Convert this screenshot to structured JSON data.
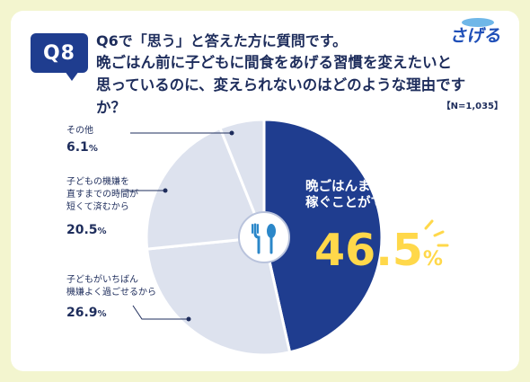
{
  "question": {
    "badge": "Q8",
    "line1": "Q6で「思う」と答えた方に質問です。",
    "line2": "晩ごはん前に子どもに間食をあげる習慣を変えたいと",
    "line3": "思っているのに、変えられないのはどのような理由ですか？",
    "sample": "【N=1,035】"
  },
  "logo_text": "さげる",
  "colors": {
    "background": "#f3f5cf",
    "main_slice": "#1f3d8f",
    "other_slices": "#dde2ee",
    "highlight_number": "#ffd84a"
  },
  "chart_data": {
    "type": "pie",
    "categories": [
      "晩ごはんまでの時間を稼ぐことができるから",
      "子どもがいちばん機嫌よく過ごせるから",
      "子どもの機嫌を直すまでの時間が短くて済むから",
      "その他"
    ],
    "values": [
      46.5,
      26.9,
      20.5,
      6.1
    ],
    "unit": "%"
  },
  "labels": {
    "main": {
      "line1": "晩ごはんまでの時間を",
      "line2": "稼ぐことができるから",
      "value": "46.5",
      "unit": "%"
    },
    "second": {
      "line1": "子どもがいちばん",
      "line2": "機嫌よく過ごせるから",
      "value": "26.9",
      "unit": "%"
    },
    "third": {
      "line1": "子どもの機嫌を",
      "line2": "直すまでの時間が",
      "line3": "短くて済むから",
      "value": "20.5",
      "unit": "%"
    },
    "other": {
      "line1": "その他",
      "value": "6.1",
      "unit": "%"
    }
  },
  "center_icon": "fork-spoon-icon"
}
